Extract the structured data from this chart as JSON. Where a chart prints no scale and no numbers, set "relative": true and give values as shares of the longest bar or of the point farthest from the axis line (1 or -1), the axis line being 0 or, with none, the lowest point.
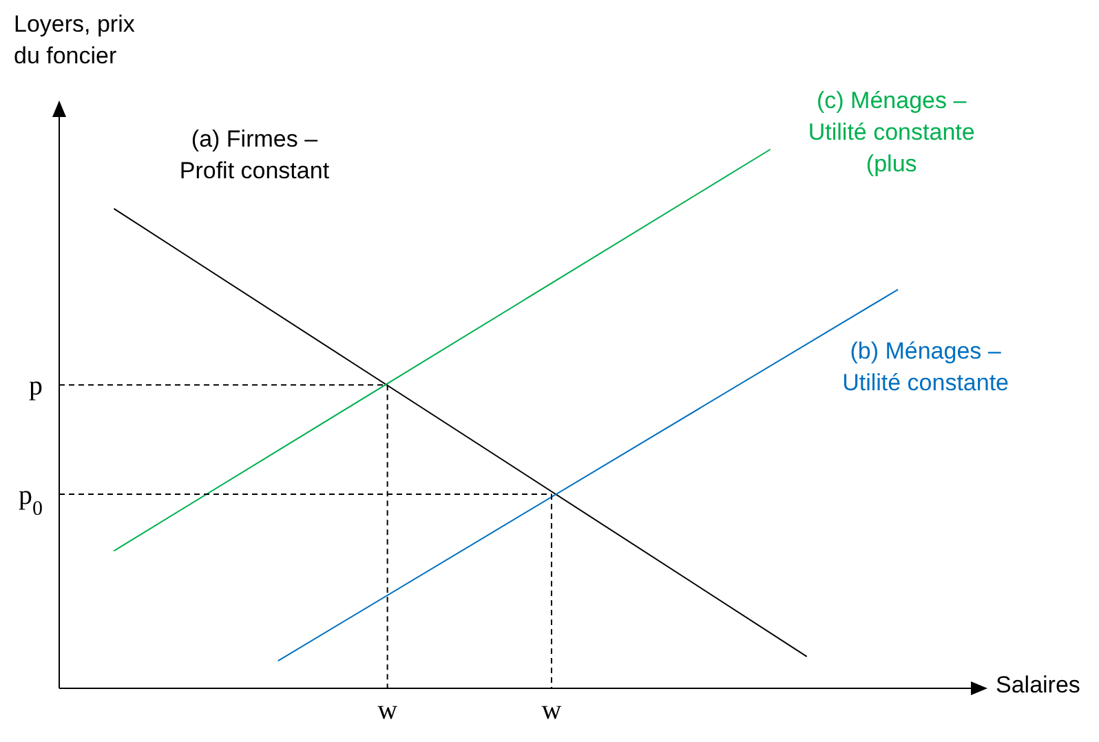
{
  "chart_data": {
    "type": "line",
    "relative": true,
    "xlabel": "Salaires",
    "ylabel": "Loyers, prix\ndu foncier",
    "categories": [
      null,
      null,
      null,
      null,
      null,
      null,
      null,
      null,
      null,
      null,
      null,
      null,
      null,
      null,
      null,
      null,
      null,
      null,
      "w",
      null,
      null,
      null,
      null,
      null,
      null,
      null,
      null,
      "w",
      null,
      null,
      null,
      null,
      null,
      null,
      null,
      null,
      null,
      null,
      null,
      null,
      null,
      null,
      null,
      null,
      null,
      null,
      null,
      null,
      null,
      null,
      null
    ],
    "annotations": [
      "p",
      "p$_{0}$"
    ],
    "marker": "none",
    "series": [
      {
        "name": "(a) Firmes –\nProfit constant",
        "color": "#000000",
        "values": [
          null,
          null,
          null,
          0.89,
          null,
          null,
          null,
          null,
          null,
          null,
          null,
          null,
          null,
          null,
          null,
          null,
          null,
          null,
          null,
          null,
          null,
          null,
          null,
          null,
          null,
          null,
          null,
          null,
          null,
          null,
          null,
          null,
          null,
          null,
          null,
          null,
          null,
          null,
          null,
          null,
          null,
          0.059,
          null,
          null,
          null,
          null,
          null,
          null,
          null,
          null,
          null
        ]
      },
      {
        "name": "(c) Ménages –\nUtilité constante\n(plus",
        "color": "#00b050",
        "values": [
          null,
          null,
          null,
          0.255,
          null,
          null,
          null,
          null,
          null,
          null,
          null,
          null,
          null,
          null,
          null,
          null,
          null,
          null,
          null,
          null,
          null,
          null,
          null,
          null,
          null,
          null,
          null,
          null,
          null,
          null,
          null,
          null,
          null,
          null,
          null,
          null,
          null,
          null,
          null,
          1.0,
          null,
          null,
          null,
          null,
          null,
          null,
          null,
          null,
          null,
          null,
          null
        ]
      },
      {
        "name": "(b) Ménages –\nUtilité constante",
        "color": "#0070c0",
        "values": [
          null,
          null,
          null,
          null,
          null,
          null,
          null,
          null,
          null,
          null,
          null,
          null,
          0.051,
          null,
          null,
          null,
          null,
          null,
          null,
          null,
          null,
          null,
          null,
          null,
          null,
          null,
          null,
          null,
          null,
          null,
          null,
          null,
          null,
          null,
          null,
          null,
          null,
          null,
          null,
          null,
          null,
          null,
          null,
          null,
          null,
          null,
          0.74,
          null,
          null,
          null,
          null
        ]
      },
      {
        "color": "#000000",
        "line_style": "dashed",
        "values": [
          0.563,
          null,
          null,
          null,
          null,
          null,
          null,
          null,
          null,
          null,
          null,
          null,
          null,
          null,
          null,
          null,
          null,
          null,
          0.563,
          null,
          null,
          null,
          null,
          null,
          null,
          null,
          null,
          null,
          null,
          null,
          null,
          null,
          null,
          null,
          null,
          null,
          null,
          null,
          null,
          null,
          null,
          null,
          null,
          null,
          null,
          null,
          null,
          null,
          null,
          null,
          null
        ]
      },
      {
        "color": "#000000",
        "line_style": "dashed",
        "values": [
          0.36,
          null,
          null,
          null,
          null,
          null,
          null,
          null,
          null,
          null,
          null,
          null,
          null,
          null,
          null,
          null,
          null,
          null,
          null,
          null,
          null,
          null,
          null,
          null,
          null,
          null,
          null,
          0.36,
          null,
          null,
          null,
          null,
          null,
          null,
          null,
          null,
          null,
          null,
          null,
          null,
          null,
          null,
          null,
          null,
          null,
          null,
          null,
          null,
          null,
          null,
          null
        ]
      }
    ]
  }
}
